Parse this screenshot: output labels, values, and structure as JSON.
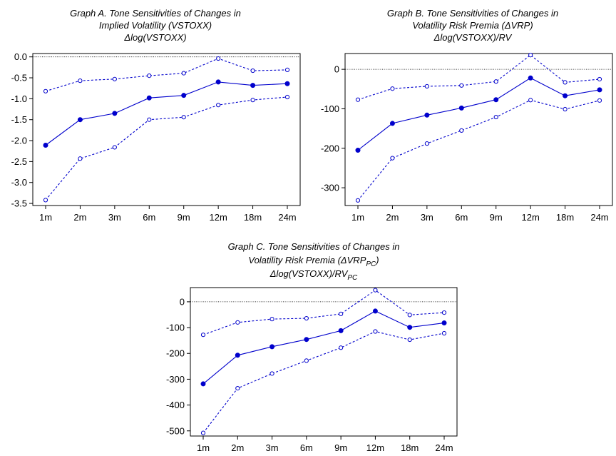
{
  "chart_data": [
    {
      "type": "line",
      "title": [
        "Graph A. Tone Sensitivities of Changes in",
        "Implied Volatility (VSTOXX)",
        "Δlog(VSTOXX)"
      ],
      "categories": [
        "1m",
        "2m",
        "3m",
        "6m",
        "9m",
        "12m",
        "18m",
        "24m"
      ],
      "ylim": [
        -3.55,
        0.08
      ],
      "yticks": [
        0.0,
        -0.5,
        -1.0,
        -1.5,
        -2.0,
        -2.5,
        -3.0,
        -3.5
      ],
      "ytick_labels": [
        "0.0",
        "-0.5",
        "-1.0",
        "-1.5",
        "-2.0",
        "-2.5",
        "-3.0",
        "-3.5"
      ],
      "zero_line": true,
      "series": [
        {
          "role": "estimate",
          "values": [
            -2.11,
            -1.5,
            -1.35,
            -0.98,
            -0.92,
            -0.6,
            -0.68,
            -0.64
          ]
        },
        {
          "role": "upper",
          "values": [
            -0.82,
            -0.57,
            -0.53,
            -0.45,
            -0.39,
            -0.04,
            -0.33,
            -0.31
          ]
        },
        {
          "role": "lower",
          "values": [
            -3.42,
            -2.43,
            -2.16,
            -1.5,
            -1.44,
            -1.15,
            -1.03,
            -0.96
          ]
        }
      ]
    },
    {
      "type": "line",
      "title": [
        "Graph B. Tone Sensitivities of Changes in",
        "Volatility Risk Premia (ΔVRP)",
        "Δlog(VSTOXX)/RV"
      ],
      "categories": [
        "1m",
        "2m",
        "3m",
        "6m",
        "9m",
        "12m",
        "18m",
        "24m"
      ],
      "ylim": [
        -345,
        40
      ],
      "yticks": [
        0,
        -100,
        -200,
        -300
      ],
      "ytick_labels": [
        "0",
        "-100",
        "-200",
        "-300"
      ],
      "zero_line": true,
      "series": [
        {
          "role": "estimate",
          "values": [
            -205,
            -137,
            -116,
            -98,
            -77,
            -22,
            -67,
            -52
          ]
        },
        {
          "role": "upper",
          "values": [
            -77,
            -49,
            -43,
            -41,
            -31,
            36,
            -33,
            -25
          ]
        },
        {
          "role": "lower",
          "values": [
            -332,
            -225,
            -188,
            -155,
            -121,
            -78,
            -101,
            -79
          ]
        }
      ]
    },
    {
      "type": "line",
      "title": [
        "Graph C. Tone Sensitivities of Changes in",
        "Volatility Risk Premia (ΔVRP",
        "PC",
        ")",
        "Δlog(VSTOXX)/RV",
        "PC"
      ],
      "categories": [
        "1m",
        "2m",
        "3m",
        "6m",
        "9m",
        "12m",
        "18m",
        "24m"
      ],
      "ylim": [
        -520,
        55
      ],
      "yticks": [
        0,
        -100,
        -200,
        -300,
        -400,
        -500
      ],
      "ytick_labels": [
        "0",
        "-100",
        "-200",
        "-300",
        "-400",
        "-500"
      ],
      "zero_line": true,
      "series": [
        {
          "role": "estimate",
          "values": [
            -318,
            -207,
            -174,
            -146,
            -112,
            -36,
            -99,
            -82
          ]
        },
        {
          "role": "upper",
          "values": [
            -128,
            -80,
            -67,
            -64,
            -47,
            45,
            -51,
            -42
          ]
        },
        {
          "role": "lower",
          "values": [
            -508,
            -335,
            -278,
            -228,
            -178,
            -115,
            -147,
            -122
          ]
        }
      ]
    }
  ],
  "colors": {
    "series": "#0000cc",
    "frame": "#000000",
    "zero_line": "#000000"
  }
}
